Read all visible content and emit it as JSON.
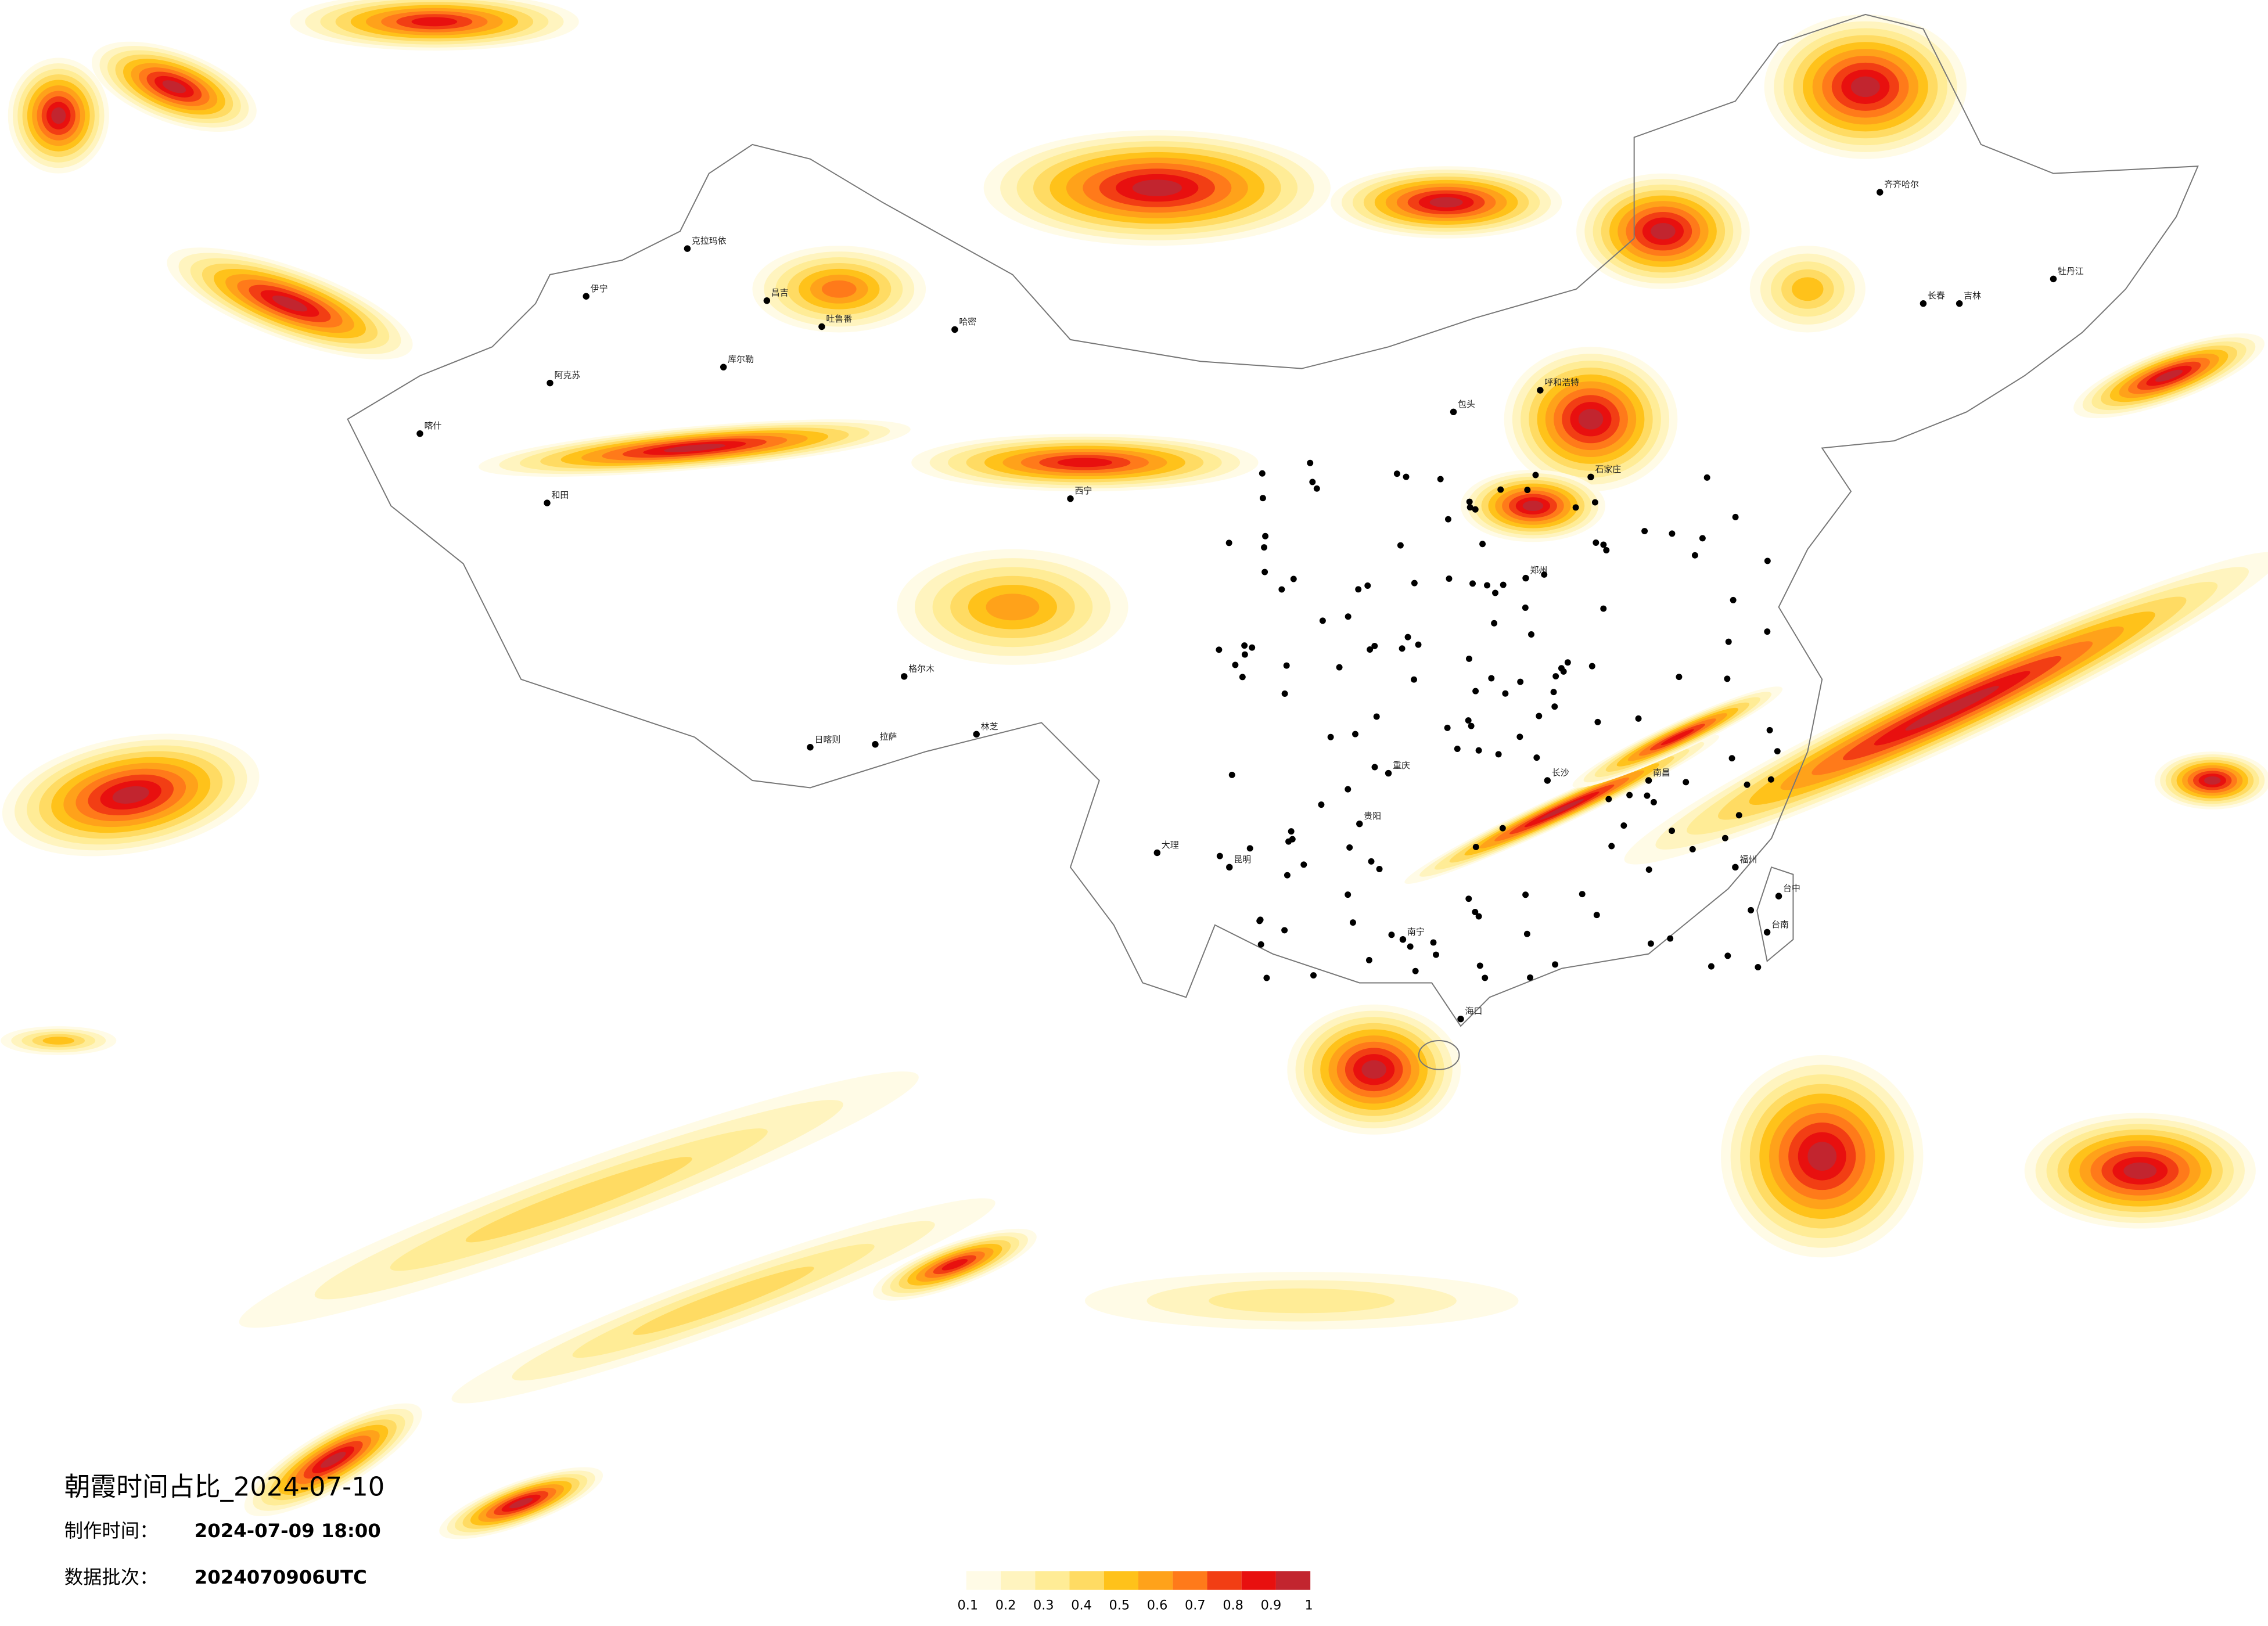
{
  "title": "朝霞时间占比_2024-07-10",
  "info": [
    {
      "label": "制作时间：",
      "value": "2024-07-09 18:00"
    },
    {
      "label": "数据批次：",
      "value": "2024070906UTC"
    }
  ],
  "colorbar": {
    "colors": [
      "#fffbe6",
      "#fff4bf",
      "#ffec96",
      "#ffdb63",
      "#ffc21a",
      "#ffa21a",
      "#ff7a1a",
      "#f23e14",
      "#e8100f",
      "#c2252f"
    ],
    "ticks": [
      0.1,
      0.2,
      0.3,
      0.4,
      0.5,
      0.6,
      0.7,
      0.8,
      0.9,
      1
    ]
  },
  "cities": [
    "阿克苏",
    "喀什",
    "和田",
    "伊宁",
    "克拉玛依",
    "昌吉",
    "吐鲁番",
    "哈密",
    "库尔勒",
    "格尔木",
    "拉萨",
    "日喀则",
    "林芝",
    "西宁",
    "呼和浩特",
    "包头",
    "石家庄",
    "郑州",
    "重庆",
    "贵阳",
    "昆明",
    "大理",
    "南宁",
    "海口",
    "长沙",
    "南昌",
    "福州",
    "长春",
    "吉林",
    "齐齐哈尔",
    "牡丹江",
    "台中",
    "台南"
  ]
}
